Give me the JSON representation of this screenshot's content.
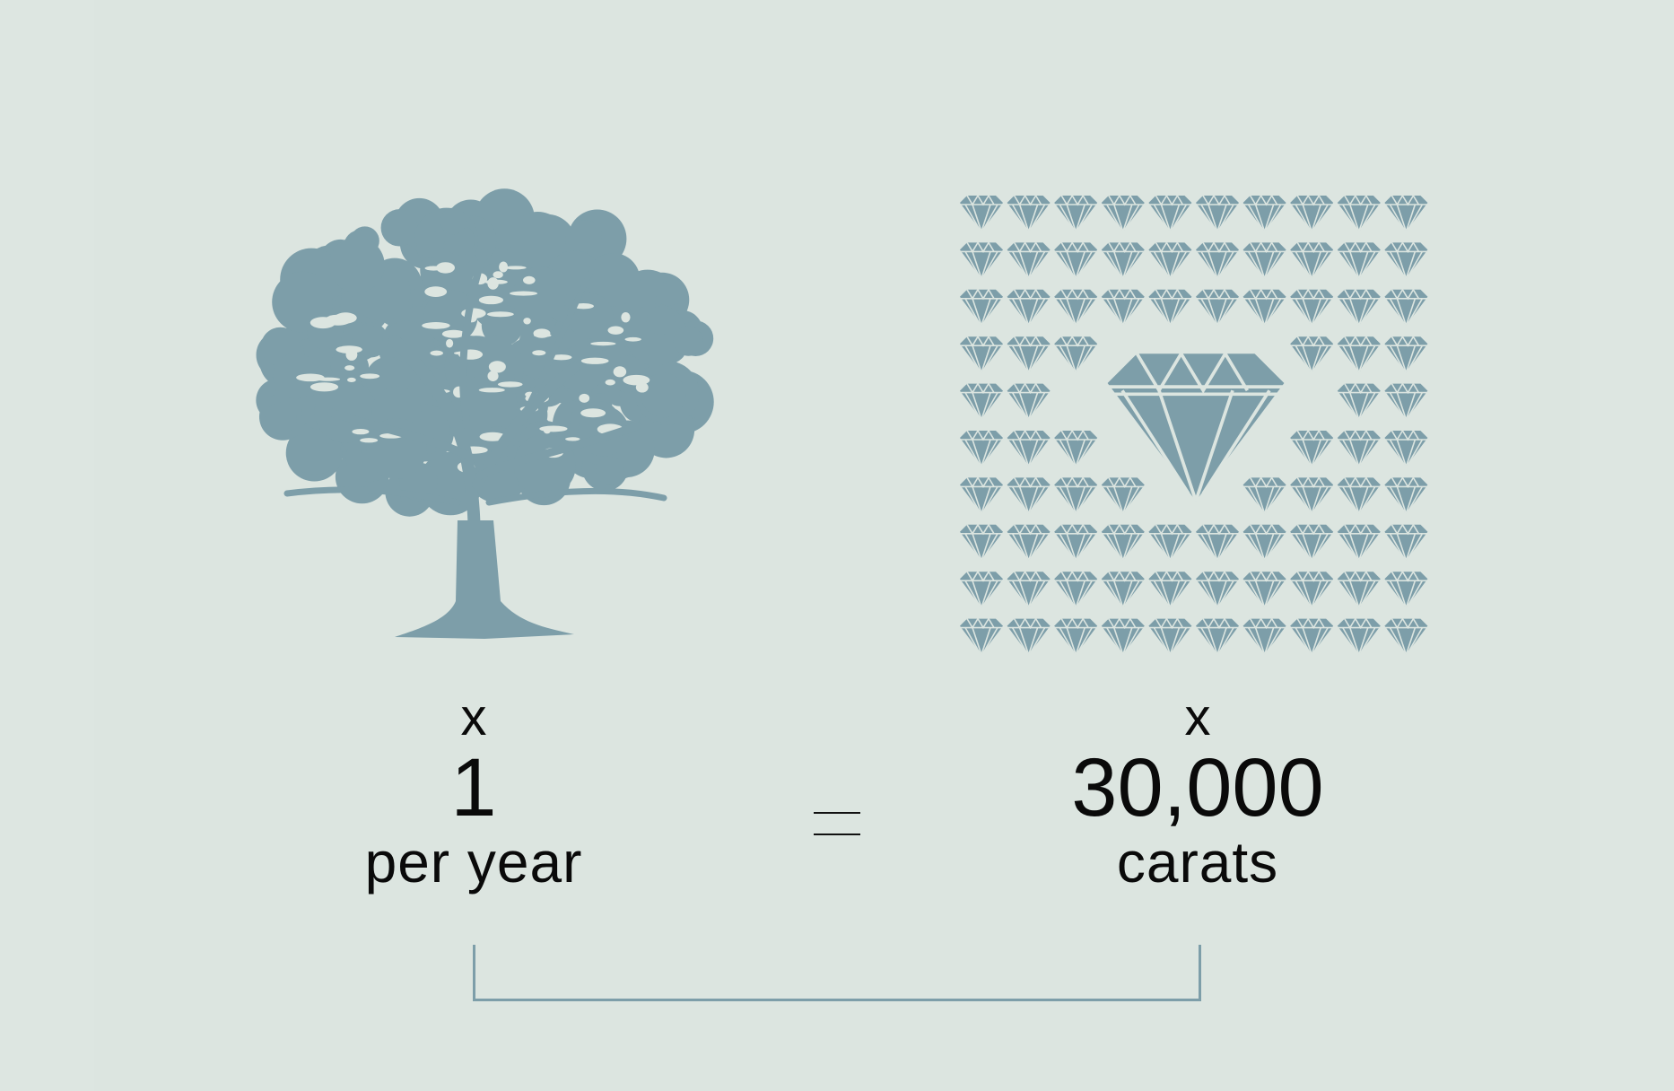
{
  "colors": {
    "background": "#dce5e0",
    "icon": "#7d9ea9",
    "text": "#0a0a0a"
  },
  "left": {
    "icon": "tree-icon",
    "multiplier": "x",
    "value": "1",
    "unit": "per year"
  },
  "equals": "=",
  "right": {
    "icon": "diamond-icon",
    "multiplier": "x",
    "value": "30,000",
    "unit": "carats"
  }
}
